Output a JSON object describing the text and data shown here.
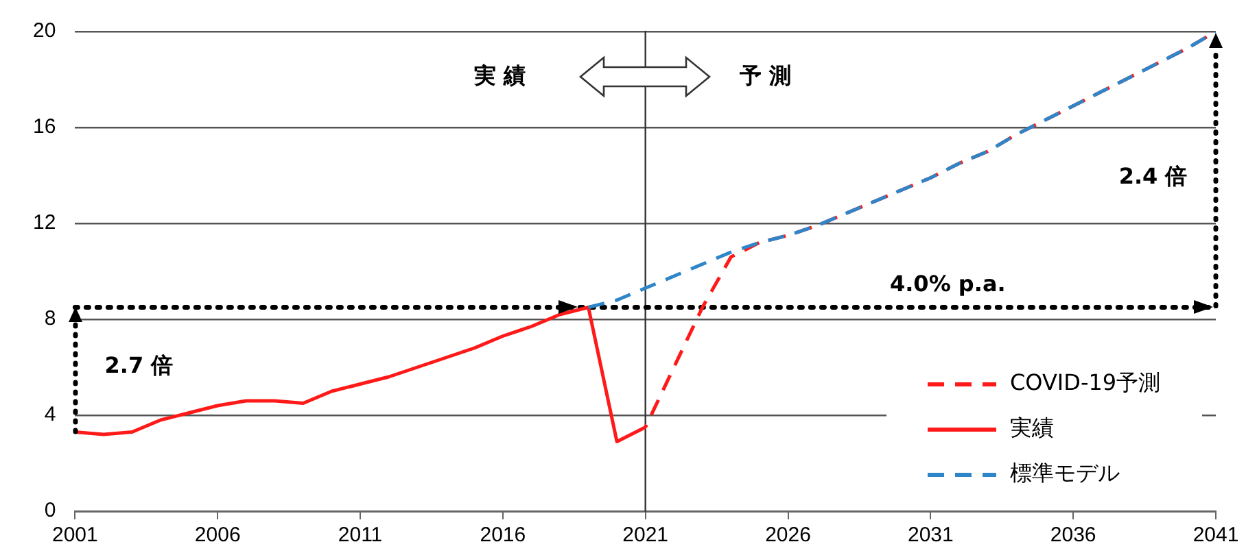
{
  "chart_data": {
    "type": "line",
    "x": [
      2001,
      2002,
      2003,
      2004,
      2005,
      2006,
      2007,
      2008,
      2009,
      2010,
      2011,
      2012,
      2013,
      2014,
      2015,
      2016,
      2017,
      2018,
      2019,
      2020,
      2021,
      2022,
      2023,
      2024,
      2025,
      2026,
      2027,
      2028,
      2029,
      2030,
      2031,
      2032,
      2033,
      2034,
      2035,
      2036,
      2037,
      2038,
      2039,
      2040,
      2041
    ],
    "series": [
      {
        "name": "COVID-19予測",
        "color": "#ff1a1a",
        "line_style": "dashed",
        "values": [
          null,
          null,
          null,
          null,
          null,
          null,
          null,
          null,
          null,
          null,
          null,
          null,
          null,
          null,
          null,
          null,
          null,
          null,
          null,
          null,
          3.5,
          6.0,
          8.5,
          10.6,
          11.2,
          11.5,
          11.9,
          12.4,
          12.9,
          13.4,
          13.9,
          14.5,
          15.0,
          15.7,
          16.3,
          16.9,
          17.5,
          18.1,
          18.7,
          19.3,
          20.0
        ]
      },
      {
        "name": "実績",
        "color": "#ff1a1a",
        "line_style": "solid",
        "values": [
          3.3,
          3.2,
          3.3,
          3.8,
          4.1,
          4.4,
          4.6,
          4.6,
          4.5,
          5.0,
          5.3,
          5.6,
          6.0,
          6.4,
          6.8,
          7.3,
          7.7,
          8.2,
          8.5,
          2.9,
          3.5,
          null,
          null,
          null,
          null,
          null,
          null,
          null,
          null,
          null,
          null,
          null,
          null,
          null,
          null,
          null,
          null,
          null,
          null,
          null,
          null
        ]
      },
      {
        "name": "標準モデル",
        "color": "#2e86c8",
        "line_style": "dashed",
        "values": [
          null,
          null,
          null,
          null,
          null,
          null,
          null,
          null,
          null,
          null,
          null,
          null,
          null,
          null,
          null,
          null,
          null,
          null,
          8.5,
          8.8,
          9.3,
          9.8,
          10.3,
          10.8,
          11.2,
          11.5,
          11.9,
          12.4,
          12.9,
          13.4,
          13.9,
          14.5,
          15.0,
          15.7,
          16.3,
          16.9,
          17.5,
          18.1,
          18.7,
          19.3,
          20.0
        ]
      }
    ],
    "xlim": [
      2001,
      2041
    ],
    "xticks": [
      2001,
      2006,
      2011,
      2016,
      2021,
      2026,
      2031,
      2036,
      2041
    ],
    "ylim": [
      0,
      20
    ],
    "yticks": [
      0,
      4,
      8,
      12,
      16,
      20
    ],
    "grid": "y",
    "legend": "bottom right",
    "marker": "none",
    "ref_lines": [
      {
        "axis": "x",
        "value": 2021,
        "color": "#333333",
        "line_style": "solid"
      },
      {
        "axis": "y",
        "value": 8.5,
        "color": "#000000",
        "line_style": "dotted"
      }
    ],
    "annotations": [
      {
        "text": "実 績",
        "x": 2015.9,
        "y": 18.1
      },
      {
        "text": "予 測",
        "x": 2025.2,
        "y": 18.1
      },
      "2.7 倍",
      "2.4 倍",
      "4.0% p.a."
    ]
  }
}
